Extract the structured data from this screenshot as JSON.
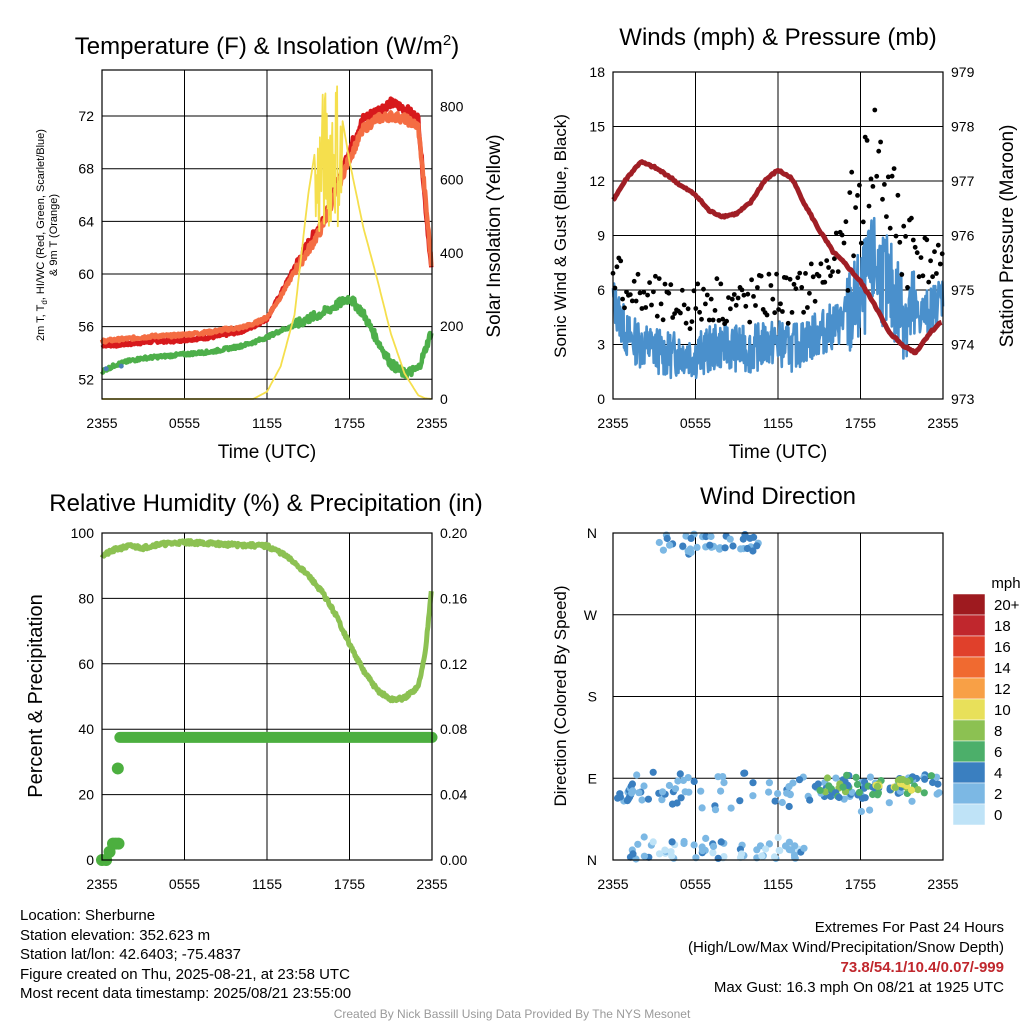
{
  "chart_data": [
    {
      "type": "line",
      "title": "Temperature (F) & Insolation (W/m²)",
      "xlabel": "Time (UTC)",
      "ylabel": "2m T, Td, HI/WC (Red, Green, Scarlet/Blue) & 9m T (Orange)",
      "y2label": "Solar Insolation (Yellow)",
      "x_ticks": [
        "2355",
        "0555",
        "1155",
        "1755",
        "2355"
      ],
      "y_ticks": [
        52,
        56,
        60,
        64,
        68,
        72
      ],
      "y2_ticks": [
        0,
        200,
        400,
        600,
        800
      ],
      "ylim": [
        50.5,
        75.5
      ],
      "y2lim": [
        0,
        900
      ],
      "grid": true,
      "x_hours": [
        0,
        1,
        2,
        3,
        4,
        5,
        6,
        7,
        8,
        9,
        10,
        11,
        12,
        13,
        14,
        15,
        16,
        17,
        18,
        19,
        20,
        21,
        22,
        23,
        23.5,
        24
      ],
      "series": [
        {
          "key": "temp_2m",
          "color": "#d7191c",
          "values": [
            54.6,
            54.6,
            54.7,
            54.8,
            54.9,
            54.9,
            55.0,
            55.1,
            55.2,
            55.4,
            55.6,
            56.0,
            56.6,
            58.5,
            60.5,
            62.3,
            64.0,
            66.5,
            69.5,
            71.8,
            72.4,
            73.0,
            72.6,
            71.8,
            65.5,
            59.8
          ]
        },
        {
          "key": "temp_9m",
          "color": "#f46d43",
          "values": [
            54.9,
            55.0,
            55.1,
            55.2,
            55.3,
            55.3,
            55.4,
            55.5,
            55.6,
            55.8,
            55.9,
            56.2,
            56.7,
            58.3,
            60.2,
            61.8,
            63.5,
            66.2,
            68.8,
            71.0,
            71.8,
            72.0,
            71.8,
            71.2,
            66.0,
            60.2
          ]
        },
        {
          "key": "dewpoint_2m",
          "color": "#4daf4a",
          "values": [
            52.6,
            53.1,
            53.4,
            53.6,
            53.7,
            53.8,
            53.9,
            54.0,
            54.1,
            54.3,
            54.5,
            54.8,
            55.2,
            55.7,
            56.1,
            56.6,
            57.0,
            57.6,
            58.2,
            57.0,
            55.0,
            53.2,
            52.4,
            52.8,
            54.2,
            55.8
          ]
        },
        {
          "key": "wind_chill",
          "color": "#4a7fb5",
          "values": [
            52.8,
            53.0
          ]
        },
        {
          "key": "solar",
          "color": "#f5df4d",
          "axis": "y2",
          "values": [
            0,
            0,
            0,
            0,
            0,
            0,
            0,
            0,
            0,
            0,
            0,
            0,
            20,
            90,
            230,
            560,
            800,
            870,
            650,
            470,
            330,
            180,
            70,
            10,
            2,
            0
          ]
        }
      ]
    },
    {
      "type": "line",
      "title": "Winds (mph) & Pressure (mb)",
      "xlabel": "Time (UTC)",
      "ylabel": "Sonic Wind & Gust (Blue, Black)",
      "y2label": "Station Pressure (Maroon)",
      "x_ticks": [
        "2355",
        "0555",
        "1155",
        "1755",
        "2355"
      ],
      "y_ticks": [
        0,
        3,
        6,
        9,
        12,
        15,
        18
      ],
      "y2_ticks": [
        973,
        974,
        975,
        976,
        977,
        978,
        979
      ],
      "ylim": [
        0,
        18
      ],
      "y2lim": [
        973,
        979
      ],
      "grid": true,
      "x_hours": [
        0,
        1,
        2,
        3,
        4,
        5,
        6,
        7,
        8,
        9,
        10,
        11,
        12,
        13,
        14,
        15,
        16,
        17,
        18,
        19,
        20,
        21,
        22,
        23,
        24
      ],
      "series": [
        {
          "key": "pressure",
          "color": "#a01e25",
          "axis": "y2",
          "values": [
            976.65,
            977.05,
            977.35,
            977.25,
            977.1,
            976.9,
            976.75,
            976.45,
            976.35,
            976.4,
            976.6,
            977.0,
            977.2,
            977.05,
            976.55,
            976.1,
            975.7,
            975.45,
            975.15,
            974.75,
            974.25,
            974.0,
            973.85,
            974.2,
            974.45
          ]
        },
        {
          "key": "wind_speed",
          "color": "#4a90cc",
          "values": [
            5.5,
            3.5,
            3.0,
            2.8,
            2.4,
            2.6,
            2.4,
            2.7,
            3.0,
            2.8,
            2.7,
            3.0,
            3.1,
            2.8,
            3.2,
            3.6,
            4.0,
            4.5,
            5.5,
            7.5,
            6.2,
            5.0,
            4.6,
            4.8,
            5.8
          ]
        },
        {
          "key": "wind_gust",
          "color": "#000000",
          "values": [
            7.5,
            6.0,
            5.6,
            5.4,
            5.0,
            5.2,
            5.0,
            5.6,
            5.4,
            5.2,
            5.3,
            5.6,
            5.8,
            5.4,
            6.0,
            6.6,
            7.4,
            8.8,
            11.0,
            14.0,
            11.2,
            9.0,
            8.2,
            7.6,
            6.8
          ]
        }
      ]
    },
    {
      "type": "line",
      "title": "Relative Humidity (%) & Precipitation (in)",
      "xlabel": "",
      "ylabel": "Percent & Precipitation",
      "x_ticks": [
        "2355",
        "0555",
        "1155",
        "1755",
        "2355"
      ],
      "y_ticks": [
        0,
        20,
        40,
        60,
        80,
        100
      ],
      "y2_ticks": [
        "0.00",
        "0.04",
        "0.08",
        "0.12",
        "0.16",
        "0.20"
      ],
      "ylim": [
        0,
        100
      ],
      "y2lim": [
        0,
        0.2
      ],
      "grid": true,
      "x_hours": [
        0,
        1,
        2,
        3,
        4,
        5,
        6,
        7,
        8,
        9,
        10,
        11,
        12,
        13,
        14,
        15,
        16,
        17,
        18,
        19,
        20,
        21,
        22,
        23,
        23.5,
        24
      ],
      "series": [
        {
          "key": "rh",
          "color": "#8cc152",
          "values": [
            93.0,
            95.0,
            96.0,
            95.5,
            96.5,
            96.8,
            97.2,
            97.0,
            96.8,
            96.5,
            96.3,
            96.2,
            96.0,
            94.0,
            91.0,
            87.0,
            82.0,
            75.0,
            66.0,
            58.0,
            52.0,
            49.0,
            49.5,
            53.0,
            63.0,
            85.0
          ]
        },
        {
          "key": "precip",
          "color": "#4caf3f",
          "axis": "y2",
          "values": [
            0.0,
            0.01,
            0.075,
            0.075,
            0.075,
            0.075,
            0.075,
            0.075,
            0.075,
            0.075,
            0.075,
            0.075,
            0.075,
            0.075,
            0.075,
            0.075,
            0.075,
            0.075,
            0.075,
            0.075,
            0.075,
            0.075,
            0.075,
            0.075,
            0.075,
            0.075
          ]
        }
      ]
    },
    {
      "type": "scatter",
      "title": "Wind Direction",
      "ylabel": "Direction (Colored By Speed)",
      "x_ticks": [
        "2355",
        "0555",
        "1155",
        "1755",
        "2355"
      ],
      "y_ticks": [
        "N",
        "E",
        "S",
        "W",
        "N"
      ],
      "y_values_deg": [
        0,
        90,
        180,
        270,
        360
      ],
      "grid": true,
      "legend_title": "mph",
      "legend": [
        {
          "label": "20+",
          "color": "#9e1a1f"
        },
        {
          "label": "18",
          "color": "#c0272d"
        },
        {
          "label": "16",
          "color": "#e0402b"
        },
        {
          "label": "14",
          "color": "#f06a30"
        },
        {
          "label": "12",
          "color": "#f8a046"
        },
        {
          "label": "10",
          "color": "#e8e05a"
        },
        {
          "label": "8",
          "color": "#8cc152"
        },
        {
          "label": "6",
          "color": "#4caf6a"
        },
        {
          "label": "4",
          "color": "#3a7fc0"
        },
        {
          "label": "2",
          "color": "#7cb8e4"
        },
        {
          "label": "0",
          "color": "#bfe3f7"
        }
      ],
      "clusters": [
        {
          "hour_start": 0,
          "hour_end": 24,
          "dir_center": 75,
          "dir_spread": 18,
          "speed": 3
        },
        {
          "hour_start": 1,
          "hour_end": 14,
          "dir_center": 10,
          "dir_spread": 12,
          "speed": 2
        },
        {
          "hour_start": 3,
          "hour_end": 11,
          "dir_center": 350,
          "dir_spread": 10,
          "speed": 3
        },
        {
          "hour_start": 15,
          "hour_end": 24,
          "dir_center": 80,
          "dir_spread": 10,
          "speed": 6
        },
        {
          "hour_start": 19,
          "hour_end": 22,
          "dir_center": 82,
          "dir_spread": 5,
          "speed": 9
        }
      ]
    }
  ],
  "footer": {
    "location": "Location: Sherburne",
    "elevation": "Station elevation: 352.623 m",
    "latlon": "Station lat/lon: 42.6403; -75.4837",
    "created": "Figure created on Thu, 2025-08-21, at 23:58 UTC",
    "recent": "Most recent data timestamp: 2025/08/21 23:55:00",
    "extremes_title": "Extremes For Past 24 Hours",
    "extremes_legend": "(High/Low/Max Wind/Precipitation/Snow Depth)",
    "extremes_values": "73.8/54.1/10.4/0.07/-999",
    "max_gust": "Max Gust: 16.3 mph On 08/21 at 1925 UTC",
    "credit": "Created By Nick Bassill Using Data Provided By The NYS Mesonet"
  }
}
